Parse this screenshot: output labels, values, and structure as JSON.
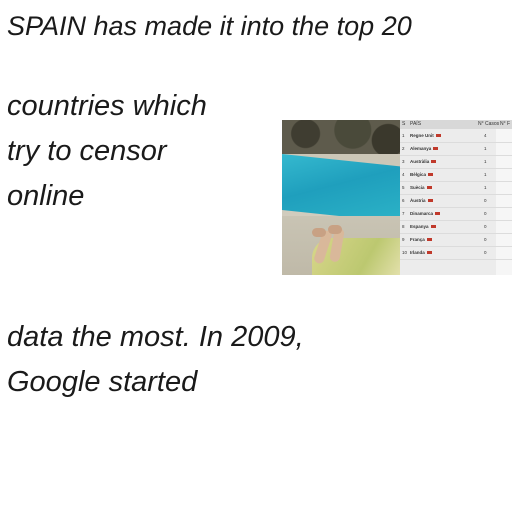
{
  "text_lines": [
    "SPAIN has made it into the top 20",
    "countries which",
    "try to censor",
    "online",
    "data the most. In 2009,",
    "Google started"
  ],
  "image": {
    "table": {
      "headers": [
        "S",
        "PAÍS",
        "N° Casos",
        "N° F"
      ],
      "rows": [
        {
          "rank": "1",
          "country": "Regne Unit",
          "cases": "4"
        },
        {
          "rank": "2",
          "country": "Alemanya",
          "cases": "1"
        },
        {
          "rank": "3",
          "country": "Austràlia",
          "cases": "1"
        },
        {
          "rank": "4",
          "country": "Bèlgica",
          "cases": "1"
        },
        {
          "rank": "5",
          "country": "Suècia",
          "cases": "1"
        },
        {
          "rank": "6",
          "country": "Àustria",
          "cases": "0"
        },
        {
          "rank": "7",
          "country": "Dinamarca",
          "cases": "0"
        },
        {
          "rank": "8",
          "country": "Espanya",
          "cases": "0"
        },
        {
          "rank": "9",
          "country": "França",
          "cases": "0"
        },
        {
          "rank": "10",
          "country": "Irlanda",
          "cases": "0"
        }
      ]
    }
  }
}
